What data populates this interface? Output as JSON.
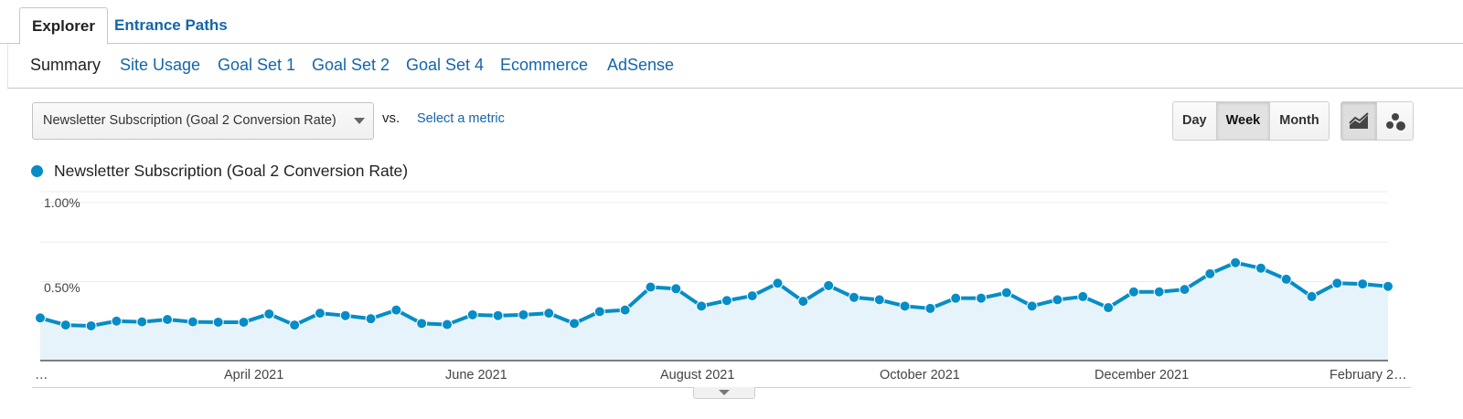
{
  "tabs": [
    {
      "label": "Explorer",
      "active": true
    },
    {
      "label": "Entrance Paths",
      "active": false
    }
  ],
  "subnav": [
    "Summary",
    "Site Usage",
    "Goal Set 1",
    "Goal Set 2",
    "Goal Set 4",
    "Ecommerce",
    "AdSense"
  ],
  "controls": {
    "metric_selected": "Newsletter Subscription (Goal 2 Conversion Rate)",
    "vs_label": "vs.",
    "select_metric_link": "Select a metric",
    "period_buttons": [
      "Day",
      "Week",
      "Month"
    ],
    "period_selected": "Week",
    "view_buttons": [
      "line-chart-icon",
      "motion-chart-icon"
    ],
    "view_selected": "line-chart-icon"
  },
  "colors": {
    "series": "#058dc7",
    "area": "#e7f3fa",
    "link": "#1565a8"
  },
  "chart_data": {
    "type": "area",
    "series": [
      {
        "name": "Newsletter Subscription (Goal 2 Conversion Rate)",
        "values": [
          0.27,
          0.225,
          0.22,
          0.25,
          0.245,
          0.26,
          0.245,
          0.243,
          0.243,
          0.295,
          0.225,
          0.3,
          0.285,
          0.265,
          0.32,
          0.235,
          0.228,
          0.29,
          0.285,
          0.29,
          0.3,
          0.235,
          0.31,
          0.32,
          0.465,
          0.455,
          0.345,
          0.38,
          0.41,
          0.49,
          0.375,
          0.475,
          0.4,
          0.385,
          0.345,
          0.33,
          0.395,
          0.395,
          0.43,
          0.345,
          0.385,
          0.405,
          0.335,
          0.435,
          0.435,
          0.45,
          0.55,
          0.62,
          0.585,
          0.515,
          0.405,
          0.49,
          0.485,
          0.47
        ]
      }
    ],
    "ylim": [
      0,
      1.0
    ],
    "y_ticks": [
      "1.00%",
      "0.50%"
    ],
    "x_tick_labels": [
      "…",
      "April 2021",
      "June 2021",
      "August 2021",
      "October 2021",
      "December 2021",
      "February 2…"
    ],
    "grid": true,
    "legend_position": "top-left"
  }
}
